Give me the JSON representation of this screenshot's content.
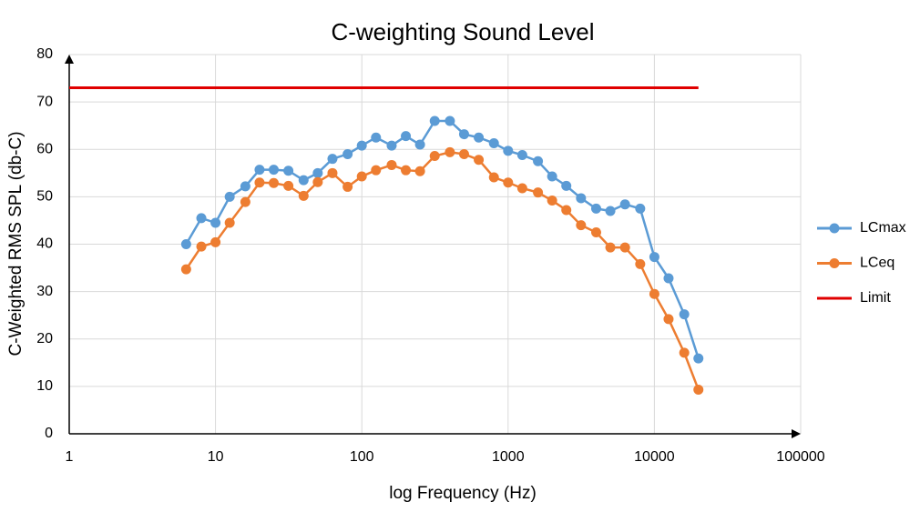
{
  "chart_data": {
    "type": "line",
    "title": "C-weighting Sound Level",
    "x_label": "log Frequency (Hz)",
    "y_label": "C-Weighted RMS SPL (db-C)",
    "xscale": "log",
    "xlim": [
      1,
      100000
    ],
    "xticks": [
      1,
      10,
      100,
      1000,
      10000,
      100000
    ],
    "ylim": [
      0,
      80
    ],
    "yticks": [
      0,
      10,
      20,
      30,
      40,
      50,
      60,
      70,
      80
    ],
    "grid": true,
    "legend": "right",
    "series": [
      {
        "name": "LCmax",
        "color": "#5b9bd5",
        "marker": true,
        "x": [
          6.3,
          8,
          10,
          12.5,
          16,
          20,
          25,
          31.5,
          40,
          50,
          63,
          80,
          100,
          125,
          160,
          200,
          250,
          315,
          400,
          500,
          630,
          800,
          1000,
          1250,
          1600,
          2000,
          2500,
          3150,
          4000,
          5000,
          6300,
          8000,
          10000,
          12500,
          16000,
          20000
        ],
        "values": [
          40,
          45.5,
          44.5,
          50,
          52.2,
          55.7,
          55.7,
          55.5,
          53.5,
          55,
          58,
          59,
          60.8,
          62.5,
          60.8,
          62.8,
          61,
          66,
          66,
          63.2,
          62.5,
          61.3,
          59.7,
          58.8,
          57.5,
          54.3,
          52.3,
          49.7,
          47.5,
          47,
          48.4,
          47.5,
          37.3,
          32.8,
          25.2,
          15.9
        ]
      },
      {
        "name": "LCeq",
        "color": "#ed7d31",
        "marker": true,
        "x": [
          6.3,
          8,
          10,
          12.5,
          16,
          20,
          25,
          31.5,
          40,
          50,
          63,
          80,
          100,
          125,
          160,
          200,
          250,
          315,
          400,
          500,
          630,
          800,
          1000,
          1250,
          1600,
          2000,
          2500,
          3150,
          4000,
          5000,
          6300,
          8000,
          10000,
          12500,
          16000,
          20000
        ],
        "values": [
          34.7,
          39.5,
          40.4,
          44.5,
          48.9,
          53,
          52.9,
          52.3,
          50.2,
          53.1,
          55,
          52.1,
          54.3,
          55.6,
          56.7,
          55.6,
          55.4,
          58.6,
          59.4,
          59,
          57.8,
          54.1,
          53,
          51.8,
          50.9,
          49.2,
          47.2,
          44,
          42.5,
          39.3,
          39.3,
          35.8,
          29.5,
          24.2,
          17.1,
          9.3
        ]
      },
      {
        "name": "Limit",
        "color": "#e00000",
        "marker": false,
        "x": [
          1,
          20000
        ],
        "values": [
          73,
          73
        ]
      }
    ]
  }
}
